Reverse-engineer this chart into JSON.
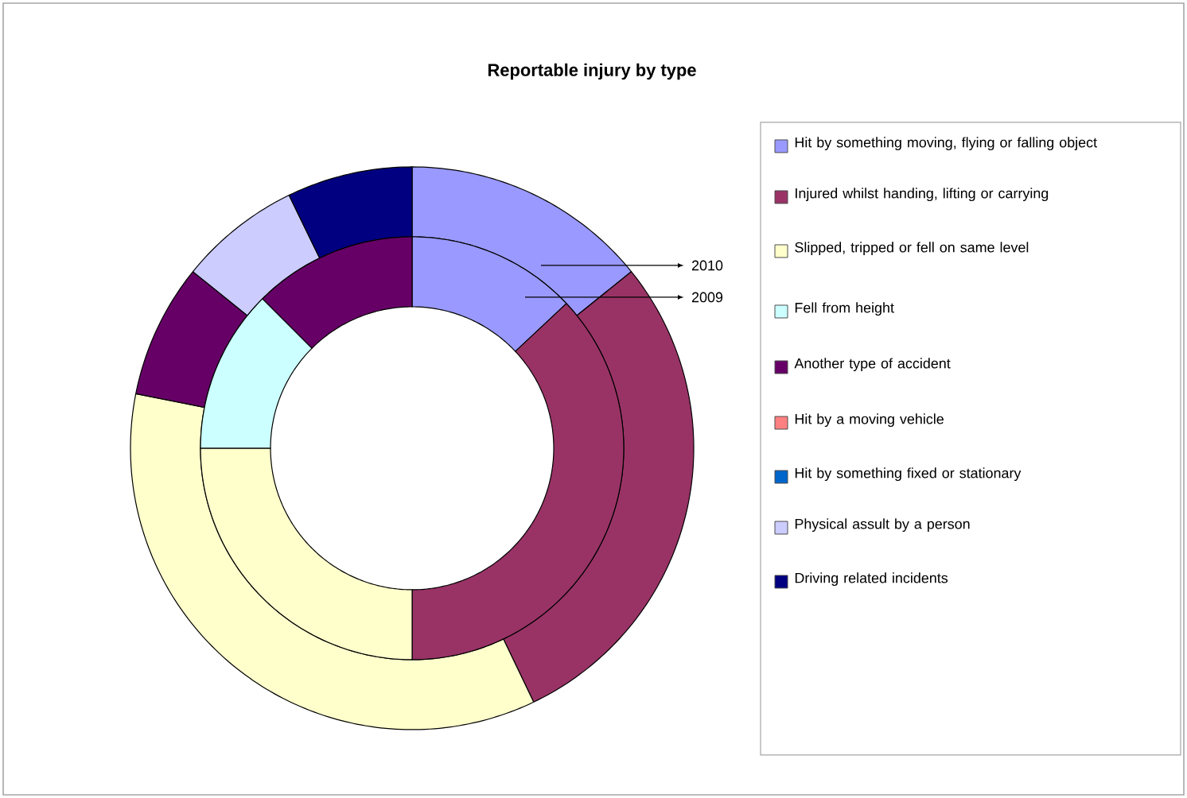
{
  "chart_data": {
    "type": "donut",
    "title": "Reportable injury by type",
    "categories": [
      "Hit by something moving, flying or falling object",
      "Injured whilst handing, lifting or carrying",
      "Slipped, tripped or fell on same level",
      "Fell from height",
      "Another type of accident",
      "Hit by a moving vehicle",
      "Hit by something fixed or stationary",
      "Physical assult by a person",
      "Driving related incidents"
    ],
    "colors": [
      "#9999ff",
      "#993366",
      "#ffffcc",
      "#ccffff",
      "#660066",
      "#ff8080",
      "#0066cc",
      "#ccccff",
      "#000080"
    ],
    "series": [
      {
        "name": "2010",
        "values": [
          14.2,
          28.7,
          35.2,
          0,
          7.7,
          0,
          0,
          7.0,
          7.2
        ]
      },
      {
        "name": "2009",
        "values": [
          13,
          37,
          25,
          12.5,
          12.5,
          0,
          0,
          0,
          0
        ]
      }
    ],
    "legend": "right"
  }
}
